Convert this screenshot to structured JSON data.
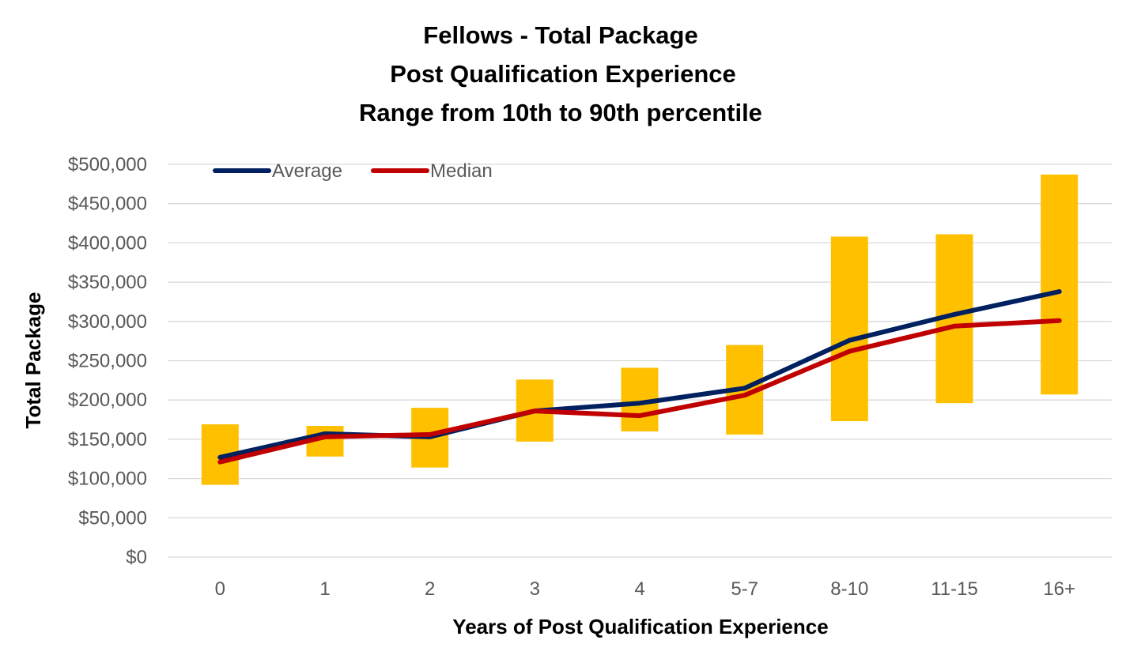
{
  "chart_data": {
    "type": "line",
    "title_lines": [
      "Fellows - Total Package",
      "Post Qualification Experience",
      "Range from 10th to 90th percentile"
    ],
    "xlabel": "Years of Post Qualification Experience",
    "ylabel": "Total Package",
    "categories": [
      "0",
      "1",
      "2",
      "3",
      "4",
      "5-7",
      "8-10",
      "11-15",
      "16+"
    ],
    "y_ticks": [
      0,
      50000,
      100000,
      150000,
      200000,
      250000,
      300000,
      350000,
      400000,
      450000,
      500000
    ],
    "y_tick_labels": [
      "$0",
      "$50,000",
      "$100,000",
      "$150,000",
      "$200,000",
      "$250,000",
      "$300,000",
      "$350,000",
      "$400,000",
      "$450,000",
      "$500,000"
    ],
    "ylim": [
      0,
      500000
    ],
    "grid": true,
    "legend_position": "top-left",
    "range_bars": {
      "name": "Range from 10th to 90th percentile",
      "color": "#FFC000",
      "low": [
        92000,
        128000,
        114000,
        147000,
        160000,
        156000,
        173000,
        196000,
        207000
      ],
      "high": [
        169000,
        167000,
        190000,
        226000,
        241000,
        270000,
        408000,
        411000,
        487000
      ]
    },
    "series": [
      {
        "name": "Average",
        "color": "#002060",
        "values": [
          127000,
          157000,
          153000,
          186000,
          196000,
          215000,
          276000,
          309000,
          338000
        ]
      },
      {
        "name": "Median",
        "color": "#C00000",
        "values": [
          121000,
          153000,
          156000,
          186000,
          180000,
          206000,
          262000,
          294000,
          301000
        ]
      }
    ]
  }
}
